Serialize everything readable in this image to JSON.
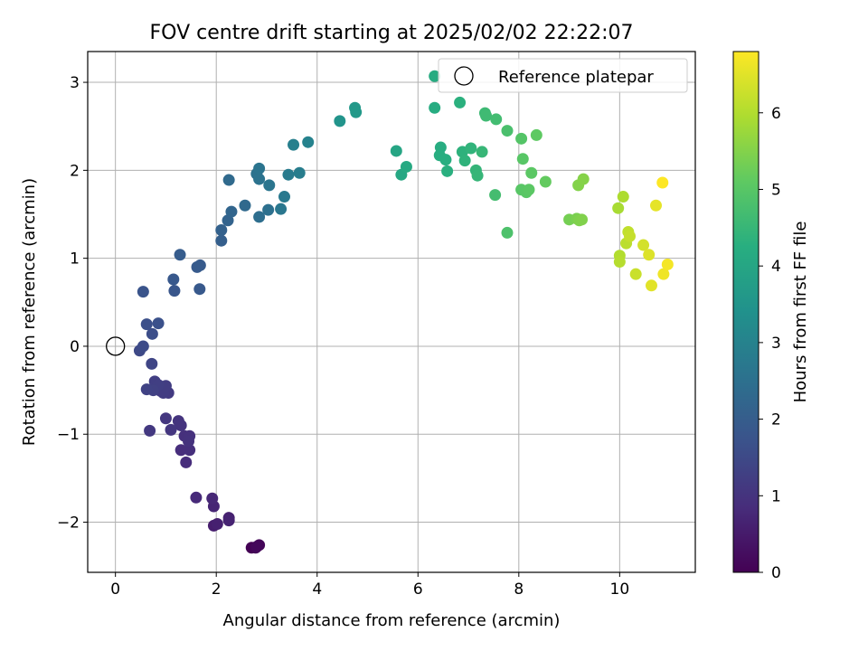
{
  "chart_data": {
    "type": "scatter",
    "title": "FOV centre drift starting at 2025/02/02 22:22:07",
    "xlabel": "Angular distance from reference (arcmin)",
    "ylabel": "Rotation from reference (arcmin)",
    "xlim": [
      -0.55,
      11.5
    ],
    "ylim": [
      -2.57,
      3.35
    ],
    "xticks": [
      0,
      2,
      4,
      6,
      8,
      10
    ],
    "yticks": [
      -2,
      -1,
      0,
      1,
      2,
      3
    ],
    "grid": true,
    "legend": {
      "location": "top-right",
      "entries": [
        "Reference platepar"
      ]
    },
    "reference_point": {
      "x": 0,
      "y": 0
    },
    "colorbar": {
      "label": "Hours from first FF file",
      "range": [
        0,
        6.8
      ],
      "ticks": [
        0,
        1,
        2,
        3,
        4,
        5,
        6
      ],
      "colormap": "viridis"
    },
    "points": [
      {
        "x": 2.7,
        "y": -2.29,
        "c": 0.0
      },
      {
        "x": 2.78,
        "y": -2.29,
        "c": 0.05
      },
      {
        "x": 2.85,
        "y": -2.26,
        "c": 0.1
      },
      {
        "x": 2.8,
        "y": -2.28,
        "c": 0.12
      },
      {
        "x": 1.95,
        "y": -2.04,
        "c": 0.55
      },
      {
        "x": 2.02,
        "y": -2.02,
        "c": 0.6
      },
      {
        "x": 2.25,
        "y": -1.95,
        "c": 0.62
      },
      {
        "x": 2.25,
        "y": -1.98,
        "c": 0.65
      },
      {
        "x": 1.95,
        "y": -1.82,
        "c": 0.7
      },
      {
        "x": 1.92,
        "y": -1.73,
        "c": 0.75
      },
      {
        "x": 1.6,
        "y": -1.72,
        "c": 0.8
      },
      {
        "x": 1.4,
        "y": -1.32,
        "c": 0.85
      },
      {
        "x": 1.3,
        "y": -1.18,
        "c": 0.88
      },
      {
        "x": 1.47,
        "y": -1.18,
        "c": 0.9
      },
      {
        "x": 1.37,
        "y": -1.02,
        "c": 0.92
      },
      {
        "x": 1.47,
        "y": -1.02,
        "c": 0.95
      },
      {
        "x": 1.45,
        "y": -1.08,
        "c": 0.97
      },
      {
        "x": 1.25,
        "y": -0.85,
        "c": 1.0
      },
      {
        "x": 1.3,
        "y": -0.9,
        "c": 1.02
      },
      {
        "x": 1.1,
        "y": -0.95,
        "c": 1.05
      },
      {
        "x": 1.0,
        "y": -0.82,
        "c": 1.07
      },
      {
        "x": 0.68,
        "y": -0.96,
        "c": 1.1
      },
      {
        "x": 1.05,
        "y": -0.53,
        "c": 1.15
      },
      {
        "x": 0.9,
        "y": -0.51,
        "c": 1.18
      },
      {
        "x": 0.95,
        "y": -0.53,
        "c": 1.2
      },
      {
        "x": 1.0,
        "y": -0.45,
        "c": 1.22
      },
      {
        "x": 0.78,
        "y": -0.4,
        "c": 1.25
      },
      {
        "x": 0.85,
        "y": -0.44,
        "c": 1.27
      },
      {
        "x": 0.75,
        "y": -0.5,
        "c": 1.3
      },
      {
        "x": 0.62,
        "y": -0.49,
        "c": 1.33
      },
      {
        "x": 0.72,
        "y": -0.2,
        "c": 1.4
      },
      {
        "x": 0.48,
        "y": -0.05,
        "c": 1.5
      },
      {
        "x": 0.55,
        "y": 0.0,
        "c": 1.55
      },
      {
        "x": 0.73,
        "y": 0.14,
        "c": 1.6
      },
      {
        "x": 0.62,
        "y": 0.25,
        "c": 1.65
      },
      {
        "x": 0.85,
        "y": 0.26,
        "c": 1.68
      },
      {
        "x": 0.55,
        "y": 0.62,
        "c": 1.75
      },
      {
        "x": 1.17,
        "y": 0.63,
        "c": 1.8
      },
      {
        "x": 1.15,
        "y": 0.76,
        "c": 1.85
      },
      {
        "x": 1.67,
        "y": 0.65,
        "c": 1.88
      },
      {
        "x": 1.62,
        "y": 0.9,
        "c": 1.92
      },
      {
        "x": 1.68,
        "y": 0.92,
        "c": 1.95
      },
      {
        "x": 1.28,
        "y": 1.04,
        "c": 1.97
      },
      {
        "x": 2.1,
        "y": 1.2,
        "c": 2.05
      },
      {
        "x": 2.1,
        "y": 1.32,
        "c": 2.1
      },
      {
        "x": 2.23,
        "y": 1.43,
        "c": 2.15
      },
      {
        "x": 2.3,
        "y": 1.53,
        "c": 2.2
      },
      {
        "x": 2.57,
        "y": 1.6,
        "c": 2.3
      },
      {
        "x": 2.25,
        "y": 1.89,
        "c": 2.35
      },
      {
        "x": 2.85,
        "y": 1.47,
        "c": 2.45
      },
      {
        "x": 3.03,
        "y": 1.55,
        "c": 2.5
      },
      {
        "x": 2.8,
        "y": 1.96,
        "c": 2.55
      },
      {
        "x": 2.85,
        "y": 1.9,
        "c": 2.58
      },
      {
        "x": 2.85,
        "y": 2.02,
        "c": 2.6
      },
      {
        "x": 3.05,
        "y": 1.83,
        "c": 2.63
      },
      {
        "x": 3.28,
        "y": 1.56,
        "c": 2.7
      },
      {
        "x": 3.35,
        "y": 1.7,
        "c": 2.75
      },
      {
        "x": 3.43,
        "y": 1.95,
        "c": 2.8
      },
      {
        "x": 3.65,
        "y": 1.97,
        "c": 2.85
      },
      {
        "x": 3.53,
        "y": 2.29,
        "c": 2.9
      },
      {
        "x": 3.82,
        "y": 2.32,
        "c": 3.0
      },
      {
        "x": 4.45,
        "y": 2.56,
        "c": 3.5
      },
      {
        "x": 4.75,
        "y": 2.71,
        "c": 3.6
      },
      {
        "x": 4.77,
        "y": 2.66,
        "c": 3.62
      },
      {
        "x": 5.57,
        "y": 2.22,
        "c": 4.0
      },
      {
        "x": 5.67,
        "y": 1.95,
        "c": 4.05
      },
      {
        "x": 5.77,
        "y": 2.04,
        "c": 4.1
      },
      {
        "x": 6.33,
        "y": 3.07,
        "c": 4.15
      },
      {
        "x": 6.33,
        "y": 2.71,
        "c": 4.18
      },
      {
        "x": 6.45,
        "y": 2.26,
        "c": 4.2
      },
      {
        "x": 6.43,
        "y": 2.17,
        "c": 4.22
      },
      {
        "x": 6.55,
        "y": 2.12,
        "c": 4.25
      },
      {
        "x": 6.58,
        "y": 1.99,
        "c": 4.28
      },
      {
        "x": 6.83,
        "y": 2.77,
        "c": 4.3
      },
      {
        "x": 6.88,
        "y": 2.21,
        "c": 4.35
      },
      {
        "x": 6.93,
        "y": 2.11,
        "c": 4.38
      },
      {
        "x": 7.05,
        "y": 2.25,
        "c": 4.4
      },
      {
        "x": 7.15,
        "y": 2.0,
        "c": 4.45
      },
      {
        "x": 7.18,
        "y": 1.94,
        "c": 4.48
      },
      {
        "x": 7.27,
        "y": 2.21,
        "c": 4.5
      },
      {
        "x": 7.33,
        "y": 2.65,
        "c": 4.6
      },
      {
        "x": 7.35,
        "y": 2.62,
        "c": 4.62
      },
      {
        "x": 7.55,
        "y": 2.58,
        "c": 4.68
      },
      {
        "x": 7.53,
        "y": 1.72,
        "c": 4.7
      },
      {
        "x": 7.77,
        "y": 2.45,
        "c": 4.8
      },
      {
        "x": 7.77,
        "y": 1.29,
        "c": 4.85
      },
      {
        "x": 8.05,
        "y": 2.36,
        "c": 4.95
      },
      {
        "x": 8.08,
        "y": 2.13,
        "c": 5.0
      },
      {
        "x": 8.05,
        "y": 1.78,
        "c": 5.0
      },
      {
        "x": 8.15,
        "y": 1.75,
        "c": 5.02
      },
      {
        "x": 8.2,
        "y": 1.78,
        "c": 5.05
      },
      {
        "x": 8.25,
        "y": 1.97,
        "c": 5.05
      },
      {
        "x": 8.35,
        "y": 2.4,
        "c": 5.1
      },
      {
        "x": 8.53,
        "y": 1.87,
        "c": 5.15
      },
      {
        "x": 9.0,
        "y": 1.44,
        "c": 5.35
      },
      {
        "x": 9.15,
        "y": 1.45,
        "c": 5.4
      },
      {
        "x": 9.2,
        "y": 1.43,
        "c": 5.45
      },
      {
        "x": 9.25,
        "y": 1.44,
        "c": 5.48
      },
      {
        "x": 9.18,
        "y": 1.83,
        "c": 5.5
      },
      {
        "x": 9.28,
        "y": 1.9,
        "c": 5.52
      },
      {
        "x": 9.97,
        "y": 1.57,
        "c": 5.9
      },
      {
        "x": 10.07,
        "y": 1.7,
        "c": 5.95
      },
      {
        "x": 10.0,
        "y": 1.03,
        "c": 6.0
      },
      {
        "x": 10.0,
        "y": 0.96,
        "c": 6.05
      },
      {
        "x": 10.13,
        "y": 1.17,
        "c": 6.1
      },
      {
        "x": 10.17,
        "y": 1.3,
        "c": 6.15
      },
      {
        "x": 10.2,
        "y": 1.25,
        "c": 6.2
      },
      {
        "x": 10.32,
        "y": 0.82,
        "c": 6.25
      },
      {
        "x": 10.47,
        "y": 1.15,
        "c": 6.35
      },
      {
        "x": 10.58,
        "y": 1.04,
        "c": 6.45
      },
      {
        "x": 10.63,
        "y": 0.69,
        "c": 6.5
      },
      {
        "x": 10.72,
        "y": 1.6,
        "c": 6.55
      },
      {
        "x": 10.87,
        "y": 0.82,
        "c": 6.65
      },
      {
        "x": 10.95,
        "y": 0.93,
        "c": 6.7
      },
      {
        "x": 10.85,
        "y": 1.86,
        "c": 6.8
      }
    ]
  }
}
